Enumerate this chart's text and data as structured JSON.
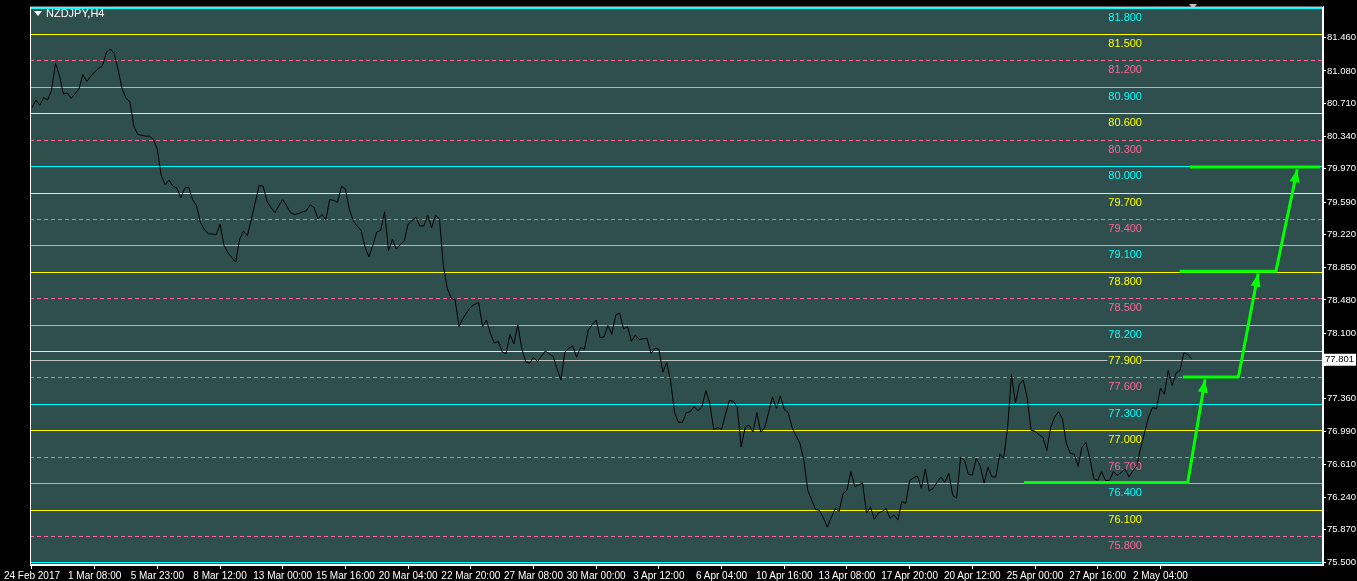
{
  "chart_data": {
    "type": "line",
    "title": "NZDJPY,H4",
    "marker": "none",
    "categories": [
      "24 Feb 2017",
      null,
      null,
      null,
      null,
      null,
      null,
      null,
      null,
      null,
      null,
      null,
      null,
      null,
      null,
      null,
      "1 Mar 08:00",
      null,
      null,
      null,
      null,
      null,
      null,
      null,
      null,
      null,
      null,
      null,
      null,
      null,
      null,
      null,
      "5 Mar 23:00",
      null,
      null,
      null,
      null,
      null,
      null,
      null,
      null,
      null,
      null,
      null,
      null,
      null,
      null,
      null,
      "8 Mar 12:00",
      null,
      null,
      null,
      null,
      null,
      null,
      null,
      null,
      null,
      null,
      null,
      null,
      null,
      null,
      null,
      "13 Mar 00:00",
      null,
      null,
      null,
      null,
      null,
      null,
      null,
      null,
      null,
      null,
      null,
      null,
      null,
      null,
      null,
      "15 Mar 16:00",
      null,
      null,
      null,
      null,
      null,
      null,
      null,
      null,
      null,
      null,
      null,
      null,
      null,
      null,
      null,
      "20 Mar 04:00",
      null,
      null,
      null,
      null,
      null,
      null,
      null,
      null,
      null,
      null,
      null,
      null,
      null,
      null,
      null,
      "22 Mar 20:00",
      null,
      null,
      null,
      null,
      null,
      null,
      null,
      null,
      null,
      null,
      null,
      null,
      null,
      null,
      null,
      "27 Mar 08:00",
      null,
      null,
      null,
      null,
      null,
      null,
      null,
      null,
      null,
      null,
      null,
      null,
      null,
      null,
      null,
      "30 Mar 00:00",
      null,
      null,
      null,
      null,
      null,
      null,
      null,
      null,
      null,
      null,
      null,
      null,
      null,
      null,
      null,
      "3 Apr 12:00",
      null,
      null,
      null,
      null,
      null,
      null,
      null,
      null,
      null,
      null,
      null,
      null,
      null,
      null,
      null,
      "6 Apr 04:00",
      null,
      null,
      null,
      null,
      null,
      null,
      null,
      null,
      null,
      null,
      null,
      null,
      null,
      null,
      null,
      "10 Apr 16:00",
      null,
      null,
      null,
      null,
      null,
      null,
      null,
      null,
      null,
      null,
      null,
      null,
      null,
      null,
      null,
      "13 Apr 08:00",
      null,
      null,
      null,
      null,
      null,
      null,
      null,
      null,
      null,
      null,
      null,
      null,
      null,
      null,
      null,
      "17 Apr 20:00",
      null,
      null,
      null,
      null,
      null,
      null,
      null,
      null,
      null,
      null,
      null,
      null,
      null,
      null,
      null,
      "20 Apr 12:00",
      null,
      null,
      null,
      null,
      null,
      null,
      null,
      null,
      null,
      null,
      null,
      null,
      null,
      null,
      null,
      "25 Apr 00:00",
      null,
      null,
      null,
      null,
      null,
      null,
      null,
      null,
      null,
      null,
      null,
      null,
      null,
      null,
      null,
      "27 Apr 16:00",
      null,
      null,
      null,
      null,
      null,
      null,
      null,
      null,
      null,
      null,
      null,
      null,
      null,
      null,
      null,
      "2 May 04:00",
      null,
      null,
      null,
      null,
      null,
      null,
      null,
      null,
      null,
      null,
      null,
      null,
      null,
      null,
      null,
      null,
      null,
      null,
      null,
      null,
      null,
      null,
      null,
      null,
      null,
      null,
      null,
      null,
      null,
      null,
      null,
      null,
      null,
      null,
      null,
      null,
      null,
      null,
      null,
      null,
      null
    ],
    "ylim": [
      75.47,
      81.81
    ],
    "yticks": [
      {
        "value": 81.46,
        "label": "81.460"
      },
      {
        "value": 81.08,
        "label": "81.080"
      },
      {
        "value": 80.71,
        "label": "80.710"
      },
      {
        "value": 80.34,
        "label": "80.340"
      },
      {
        "value": 79.97,
        "label": "79.970"
      },
      {
        "value": 79.59,
        "label": "79.590"
      },
      {
        "value": 79.22,
        "label": "79.220"
      },
      {
        "value": 78.85,
        "label": "78.850"
      },
      {
        "value": 78.48,
        "label": "78.480"
      },
      {
        "value": 78.1,
        "label": "78.100"
      },
      {
        "value": 77.73,
        "label": null
      },
      {
        "value": 77.36,
        "label": "77.360"
      },
      {
        "value": 76.99,
        "label": "76.990"
      },
      {
        "value": 76.61,
        "label": "76.610"
      },
      {
        "value": 76.24,
        "label": "76.240"
      },
      {
        "value": 75.87,
        "label": "75.870"
      },
      {
        "value": 75.5,
        "label": "75.500"
      }
    ],
    "series": [
      {
        "color": "#000000",
        "values": [
          80.66,
          80.75,
          80.69,
          80.78,
          80.75,
          80.86,
          81.17,
          81.03,
          80.82,
          80.83,
          80.77,
          80.82,
          80.88,
          81.04,
          80.96,
          81.02,
          81.07,
          81.11,
          81.14,
          81.29,
          81.33,
          81.28,
          81.09,
          80.88,
          80.77,
          80.73,
          80.45,
          80.36,
          80.35,
          80.34,
          80.34,
          80.3,
          80.19,
          79.89,
          79.79,
          79.84,
          79.77,
          79.75,
          79.64,
          79.75,
          79.76,
          79.62,
          79.55,
          79.36,
          79.28,
          79.23,
          79.23,
          79.22,
          79.34,
          79.1,
          79.02,
          78.96,
          78.91,
          79.17,
          79.26,
          79.21,
          79.4,
          79.59,
          79.78,
          79.77,
          79.6,
          79.53,
          79.47,
          79.55,
          79.62,
          79.55,
          79.47,
          79.45,
          79.46,
          79.48,
          79.49,
          79.56,
          79.53,
          79.4,
          79.45,
          79.39,
          79.62,
          79.61,
          79.59,
          79.77,
          79.74,
          79.51,
          79.38,
          79.32,
          79.27,
          79.08,
          78.97,
          79.1,
          79.25,
          79.27,
          79.48,
          79.04,
          79.17,
          79.06,
          79.11,
          79.15,
          79.34,
          79.38,
          79.42,
          79.32,
          79.32,
          79.44,
          79.3,
          79.44,
          79.4,
          78.87,
          78.61,
          78.5,
          78.48,
          78.18,
          78.27,
          78.34,
          78.4,
          78.43,
          78.45,
          78.18,
          78.25,
          78.1,
          77.99,
          78.01,
          77.89,
          77.87,
          78.09,
          77.98,
          78.2,
          77.93,
          77.78,
          77.76,
          77.83,
          77.78,
          77.84,
          77.9,
          77.87,
          77.84,
          77.7,
          77.57,
          77.89,
          77.93,
          77.96,
          77.83,
          77.94,
          77.92,
          78.14,
          78.2,
          78.25,
          78.05,
          78.06,
          78.19,
          78.09,
          78.31,
          78.33,
          78.15,
          78.18,
          78.01,
          78.08,
          78.03,
          78.04,
          78.04,
          77.87,
          77.93,
          77.92,
          77.66,
          77.77,
          77.56,
          77.2,
          77.09,
          77.09,
          77.2,
          77.21,
          77.27,
          77.22,
          77.27,
          77.45,
          77.3,
          77.01,
          77.03,
          77.01,
          77.18,
          77.34,
          77.33,
          77.26,
          76.81,
          77.03,
          77.06,
          76.98,
          77.2,
          76.98,
          77.03,
          77.2,
          77.38,
          77.25,
          77.39,
          77.24,
          77.2,
          77.03,
          76.94,
          76.85,
          76.66,
          76.32,
          76.21,
          76.1,
          76.09,
          76.0,
          75.9,
          76.01,
          76.11,
          76.08,
          76.28,
          76.32,
          76.53,
          76.36,
          76.38,
          76.4,
          76.06,
          76.13,
          75.99,
          76.06,
          76.08,
          76.11,
          76.0,
          76.04,
          75.98,
          76.19,
          76.17,
          76.43,
          76.46,
          76.48,
          76.34,
          76.56,
          76.31,
          76.34,
          76.41,
          76.47,
          76.41,
          76.51,
          76.26,
          76.23,
          76.69,
          76.66,
          76.5,
          76.49,
          76.68,
          76.6,
          76.4,
          76.58,
          76.47,
          76.47,
          76.73,
          76.68,
          77.03,
          77.63,
          77.31,
          77.52,
          77.57,
          77.37,
          77.0,
          76.99,
          76.95,
          76.92,
          76.77,
          77.03,
          77.15,
          77.21,
          77.13,
          76.85,
          76.74,
          76.73,
          76.59,
          76.81,
          76.86,
          76.68,
          76.45,
          76.43,
          76.53,
          76.43,
          76.43,
          76.53,
          76.49,
          76.52,
          76.56,
          76.47,
          76.54,
          76.6,
          76.81,
          76.98,
          77.15,
          77.26,
          77.24,
          77.48,
          77.41,
          77.68,
          77.51,
          77.65,
          77.68,
          77.88,
          77.86,
          77.81,
          null,
          null,
          null,
          null,
          null,
          null,
          null,
          null,
          null,
          null,
          null,
          null,
          null,
          null,
          null,
          null,
          null,
          null,
          null,
          null,
          null,
          null,
          null,
          null,
          null,
          null,
          null,
          null,
          null,
          null,
          null,
          null,
          null
        ]
      }
    ],
    "ref_lines": [
      {
        "axis": "y",
        "value": 81.8,
        "label": "81.800",
        "color": "#00ffff",
        "line_style": "solid"
      },
      {
        "axis": "y",
        "value": 81.5,
        "label": "81.500",
        "color": "#ffff00",
        "line_style": "solid"
      },
      {
        "axis": "y",
        "value": 81.2,
        "label": "81.200",
        "color": "#ff6699",
        "line_style": "dashed"
      },
      {
        "axis": "y",
        "value": 80.9,
        "label": "80.900",
        "color": "#00ffff",
        "line_style": "solid"
      },
      {
        "axis": "y",
        "value": 80.6,
        "label": "80.600",
        "color": "#ffff00",
        "line_style": "solid"
      },
      {
        "axis": "y",
        "value": 80.3,
        "label": "80.300",
        "color": "#ff6699",
        "line_style": "dashed"
      },
      {
        "axis": "y",
        "value": 80.0,
        "label": "80.000",
        "color": "#00ffff",
        "line_style": "solid"
      },
      {
        "axis": "y",
        "value": 79.7,
        "label": "79.700",
        "color": "#ffff00",
        "line_style": "solid"
      },
      {
        "axis": "y",
        "value": 79.4,
        "label": "79.400",
        "color": "#ff6699",
        "line_style": "dashed"
      },
      {
        "axis": "y",
        "value": 79.1,
        "label": "79.100",
        "color": "#00ffff",
        "line_style": "solid"
      },
      {
        "axis": "y",
        "value": 78.8,
        "label": "78.800",
        "color": "#ffff00",
        "line_style": "solid"
      },
      {
        "axis": "y",
        "value": 78.5,
        "label": "78.500",
        "color": "#ff6699",
        "line_style": "dashed"
      },
      {
        "axis": "y",
        "value": 78.2,
        "label": "78.200",
        "color": "#00ffff",
        "line_style": "solid"
      },
      {
        "axis": "y",
        "value": 77.9,
        "label": "77.900",
        "color": "#ffff00",
        "line_style": "solid"
      },
      {
        "axis": "y",
        "value": 77.801,
        "color": "#c0c0c0",
        "line_style": "solid"
      },
      {
        "axis": "y",
        "value": 77.6,
        "label": "77.600",
        "color": "#ff6699",
        "line_style": "dashed"
      },
      {
        "axis": "y",
        "value": 77.3,
        "label": "77.300",
        "color": "#00ffff",
        "line_style": "solid"
      },
      {
        "axis": "y",
        "value": 77.0,
        "label": "77.000",
        "color": "#ffff00",
        "line_style": "solid"
      },
      {
        "axis": "y",
        "value": 76.7,
        "label": "76.700",
        "color": "#ff6699",
        "line_style": "dashed"
      },
      {
        "axis": "y",
        "value": 76.4,
        "label": "76.400",
        "color": "#00ffff",
        "line_style": "solid"
      },
      {
        "axis": "y",
        "value": 76.1,
        "label": "76.100",
        "color": "#ffff00",
        "line_style": "solid"
      },
      {
        "axis": "y",
        "value": 75.8,
        "label": "75.800",
        "color": "#ff6699",
        "line_style": "dashed"
      },
      {
        "axis": "y",
        "value": 75.5,
        "color": "#00ffff",
        "line_style": "solid"
      }
    ],
    "annotations": [
      {
        "text": "77.801",
        "y": 77.801
      }
    ]
  }
}
